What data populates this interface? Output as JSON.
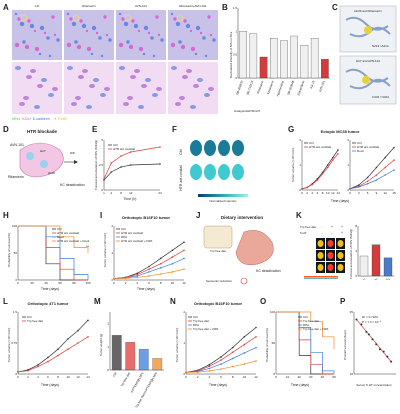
{
  "panels": {
    "A": {
      "label": "A",
      "conditions": [
        "Ctrl",
        "Ritanserin",
        "AVN-101",
        "Ritanserin+AVN-101"
      ],
      "legend": [
        {
          "text": "NPs",
          "color": "#2fd04a"
        },
        {
          "text": "/",
          "color": "#333333"
        },
        {
          "text": "KCs",
          "color": "#e040c8"
        },
        {
          "text": "/",
          "color": "#333333"
        },
        {
          "text": "E-cadherin",
          "color": "#3d6fe0"
        },
        {
          "text": "/",
          "color": "#333333"
        },
        {
          "text": "F4/80",
          "color": "#e8c020"
        }
      ]
    },
    "B": {
      "label": "B",
      "ylabel": "Normalized intensity of NPs in KCs",
      "drugs": [
        "SB-269970",
        "SB-710213",
        "Ritanserin",
        "Ketanserin",
        "Agomelatine",
        "SB-200646",
        "Ziprasidone",
        "AS-19",
        "AVN-101"
      ],
      "targets": [
        "HTR1A",
        "HTR2A",
        "HTR2B",
        "HTR7"
      ],
      "antagonist_label": "Antagonist",
      "target_label": "HTR1A/7"
    },
    "C": {
      "label": "C",
      "complex1": "Htr2b and Ritanserin",
      "complex2": "Htr7 and AVN-101",
      "residue1": "N213 / A214",
      "residue2": "C343 / N344"
    },
    "D": {
      "label": "D",
      "title": "HTR blockade",
      "drug1": "AVN-101",
      "drug2": "Ritanserin",
      "receptor1": "Htr7",
      "receptor2": "Htr2b",
      "outcome": "KC deactivation",
      "marker": "iD8"
    },
    "E": {
      "label": "E",
      "ylabel": "Tumoral accumulation of NPs (%ID/g)",
      "xlabel": "Time (h)",
      "legend": [
        "Ctrl",
        "HTR ant cocktail"
      ]
    },
    "F": {
      "label": "F",
      "row1": "Ctrl",
      "row2": "HTR ant cocktail",
      "colorbar": "Normalized intensity"
    },
    "G": {
      "label": "G",
      "title": "Ectopic MC38 tumor",
      "ylabel": "Tumor volume (×10³ mm³)",
      "xlabel": "Time (days)",
      "legend1": [
        "Ctrl",
        "HTR ant cocktail"
      ],
      "legend2": [
        "Ctrl",
        "HTR ant cocktail",
        "Doxil"
      ]
    },
    "H": {
      "label": "H",
      "ylabel": "Probability of survival (%)",
      "xlabel": "Time (days)",
      "legend": [
        "Ctrl",
        "HTR ant cocktail",
        "Doxil",
        "HTR ant cocktail + Doxil"
      ],
      "sig": "**"
    },
    "I": {
      "label": "I",
      "title": "Orthotopic B16F10 tumor",
      "ylabel": "Tumor volume (×10³ mm³)",
      "xlabel": "Time (days)",
      "legend": [
        "Ctrl",
        "HTR ant cocktail",
        "DPA",
        "HTR ant cocktail + DPA"
      ]
    },
    "J": {
      "label": "J",
      "title": "Dietary intervention",
      "diet": "Trp free diet",
      "outcome": "KC deactivation",
      "reduction": "Serotonin reduction"
    },
    "K": {
      "label": "K",
      "diet_label": "Trp free diet",
      "ht_label": "5-HT",
      "signs": [
        "-",
        "+",
        "+"
      ],
      "ht_signs": [
        "-",
        "-",
        "+"
      ],
      "ylabel": "Tumoral accumulation of NPs (%ID/g)"
    },
    "L": {
      "label": "L",
      "title": "Orthotopic 4T1 tumor",
      "ylabel": "Tumor volume (×10³ mm³)",
      "xlabel": "Time (days)",
      "legend": [
        "Ctrl",
        "Trp free diet"
      ]
    },
    "M": {
      "label": "M",
      "ylabel": "Tumor weight (g)",
      "legend": [
        "Ctrl",
        "Trp free diet",
        "mPTENP@LNPs",
        "mPTENP@LNPs + Trp free diet"
      ],
      "categories": [
        "Ctrl",
        "Trp free diet",
        "mPTENP@LNPs",
        "Trp free diet+mPTENP@LNPs"
      ]
    },
    "N": {
      "label": "N",
      "title": "Orthotopic B16F10 tumor",
      "ylabel": "Tumor volume (×10³ mm³)",
      "xlabel": "Time (days)",
      "legend": [
        "Ctrl",
        "Trp free diet",
        "DPA",
        "Trp free diet + DPA"
      ]
    },
    "O": {
      "label": "O",
      "ylabel": "Probability of survival (%)",
      "xlabel": "Time (days)",
      "legend": [
        "Ctrl",
        "Trp free diet",
        "DPA",
        "Trp free diet + DPA"
      ]
    },
    "P": {
      "label": "P",
      "ylabel": "Overall survival (days)",
      "xlabel": "Serum 5-HT concentration",
      "r2": "R² = 0.7160",
      "pval": "P = 7.0 × 10⁻⁵"
    }
  },
  "colors": {
    "ctrl": "#333333",
    "treat": "#e23b3b",
    "treat2": "#3a7fd8",
    "combo": "#f08a24",
    "bar_hi": "#d23c3c",
    "bar_lo": "#4a7ac8"
  },
  "chart_data": [
    {
      "panel": "B",
      "type": "bar",
      "categories": [
        "SB-269970",
        "SB-710213",
        "Ritanserin",
        "Ketanserin",
        "Agomelatine",
        "SB-200646",
        "Ziprasidone",
        "AS-19",
        "AVN-101"
      ],
      "values": [
        1.0,
        0.95,
        0.45,
        0.85,
        0.8,
        0.9,
        0.7,
        0.85,
        0.4
      ],
      "ylim": [
        0,
        1.5
      ]
    },
    {
      "panel": "E",
      "type": "line",
      "x": [
        1,
        4,
        8,
        12,
        24
      ],
      "series": [
        {
          "name": "Ctrl",
          "values": [
            1.0,
            1.8,
            2.3,
            2.5,
            2.6
          ]
        },
        {
          "name": "HTR ant cocktail",
          "values": [
            1.1,
            2.7,
            3.4,
            3.8,
            4.3
          ]
        }
      ],
      "ylim": [
        0,
        5
      ]
    },
    {
      "panel": "G1",
      "type": "line",
      "x": [
        0,
        2,
        4,
        6,
        8,
        10,
        12,
        14
      ],
      "series": [
        {
          "name": "Ctrl",
          "values": [
            0.05,
            0.1,
            0.25,
            0.45,
            0.7,
            1.0,
            1.3,
            1.6
          ]
        },
        {
          "name": "HTR ant cocktail",
          "values": [
            0.05,
            0.1,
            0.22,
            0.4,
            0.65,
            0.9,
            1.2,
            1.45
          ]
        }
      ],
      "ylim": [
        0,
        2
      ]
    },
    {
      "panel": "G2",
      "type": "line",
      "x": [
        0,
        3,
        6,
        9,
        12,
        15
      ],
      "series": [
        {
          "name": "Ctrl",
          "values": [
            0.05,
            0.2,
            0.5,
            0.9,
            1.3,
            1.7
          ]
        },
        {
          "name": "HTR ant cocktail",
          "values": [
            0.05,
            0.15,
            0.35,
            0.6,
            0.9,
            1.2
          ]
        },
        {
          "name": "Doxil",
          "values": [
            0.05,
            0.12,
            0.25,
            0.4,
            0.6,
            0.8
          ]
        }
      ],
      "ylim": [
        0,
        2
      ]
    },
    {
      "panel": "H",
      "type": "line",
      "x": [
        0,
        20,
        40,
        60,
        80,
        100
      ],
      "series": [
        {
          "name": "Ctrl",
          "values": [
            100,
            100,
            30,
            0,
            0,
            0
          ]
        },
        {
          "name": "HTR ant cocktail",
          "values": [
            100,
            100,
            60,
            20,
            0,
            0
          ]
        },
        {
          "name": "Doxil",
          "values": [
            100,
            100,
            80,
            40,
            10,
            0
          ]
        },
        {
          "name": "HTR ant cocktail + Doxil",
          "values": [
            100,
            100,
            100,
            80,
            60,
            50
          ]
        }
      ],
      "ylim": [
        0,
        100
      ]
    },
    {
      "panel": "I",
      "type": "line",
      "x": [
        0,
        2,
        4,
        6,
        8,
        10,
        12
      ],
      "series": [
        {
          "name": "Ctrl",
          "values": [
            0.05,
            0.1,
            0.25,
            0.5,
            0.8,
            1.1,
            1.4
          ]
        },
        {
          "name": "HTR ant cocktail",
          "values": [
            0.05,
            0.1,
            0.2,
            0.4,
            0.6,
            0.85,
            1.1
          ]
        },
        {
          "name": "DPA",
          "values": [
            0.05,
            0.08,
            0.15,
            0.3,
            0.45,
            0.6,
            0.8
          ]
        },
        {
          "name": "HTR ant cocktail + DPA",
          "values": [
            0.05,
            0.06,
            0.1,
            0.15,
            0.22,
            0.3,
            0.4
          ]
        }
      ],
      "ylim": [
        0,
        2
      ]
    },
    {
      "panel": "K",
      "type": "bar",
      "categories": [
        "-/-",
        "+/-",
        "+/+"
      ],
      "values": [
        3.2,
        5.0,
        2.9
      ],
      "ylim": [
        0,
        8
      ]
    },
    {
      "panel": "L",
      "type": "line",
      "x": [
        0,
        2,
        4,
        6,
        8,
        10,
        12,
        14
      ],
      "series": [
        {
          "name": "Ctrl",
          "values": [
            0.05,
            0.1,
            0.22,
            0.4,
            0.6,
            0.85,
            1.05,
            1.3
          ]
        },
        {
          "name": "Trp free diet",
          "values": [
            0.05,
            0.08,
            0.18,
            0.3,
            0.45,
            0.6,
            0.75,
            0.9
          ]
        }
      ],
      "ylim": [
        0,
        1.5
      ]
    },
    {
      "panel": "M",
      "type": "bar",
      "categories": [
        "Ctrl",
        "Trp free diet",
        "mPTENP@LNPs",
        "Trp free diet+mPTENP@LNPs"
      ],
      "values": [
        1.5,
        1.2,
        0.9,
        0.5
      ],
      "ylim": [
        0,
        2.5
      ]
    },
    {
      "panel": "N",
      "type": "line",
      "x": [
        0,
        2,
        4,
        6,
        8,
        10,
        12
      ],
      "series": [
        {
          "name": "Ctrl",
          "values": [
            0.05,
            0.12,
            0.3,
            0.55,
            0.85,
            1.2,
            1.5
          ]
        },
        {
          "name": "Trp free diet",
          "values": [
            0.05,
            0.1,
            0.25,
            0.45,
            0.7,
            0.95,
            1.2
          ]
        },
        {
          "name": "DPA",
          "values": [
            0.05,
            0.08,
            0.18,
            0.32,
            0.5,
            0.68,
            0.85
          ]
        },
        {
          "name": "Trp free diet + DPA",
          "values": [
            0.05,
            0.06,
            0.1,
            0.16,
            0.24,
            0.32,
            0.42
          ]
        }
      ],
      "ylim": [
        0,
        2
      ]
    },
    {
      "panel": "O",
      "type": "line",
      "x": [
        0,
        10,
        20,
        30,
        40,
        50
      ],
      "series": [
        {
          "name": "Ctrl",
          "values": [
            100,
            100,
            30,
            0,
            0,
            0
          ]
        },
        {
          "name": "Trp free diet",
          "values": [
            100,
            100,
            55,
            15,
            0,
            0
          ]
        },
        {
          "name": "DPA",
          "values": [
            100,
            100,
            75,
            35,
            5,
            0
          ]
        },
        {
          "name": "Trp free diet + DPA",
          "values": [
            100,
            100,
            100,
            85,
            60,
            40
          ]
        }
      ],
      "ylim": [
        0,
        100
      ]
    },
    {
      "panel": "P",
      "type": "scatter",
      "x": [
        0.6,
        0.8,
        1.0,
        1.1,
        1.25,
        1.4,
        1.55,
        1.7,
        1.85,
        2.0
      ],
      "y": [
        32,
        30,
        27,
        26,
        24,
        22,
        20,
        19,
        17,
        15
      ],
      "xlim": [
        0.5,
        2.2
      ],
      "ylim": [
        10,
        35
      ]
    }
  ]
}
